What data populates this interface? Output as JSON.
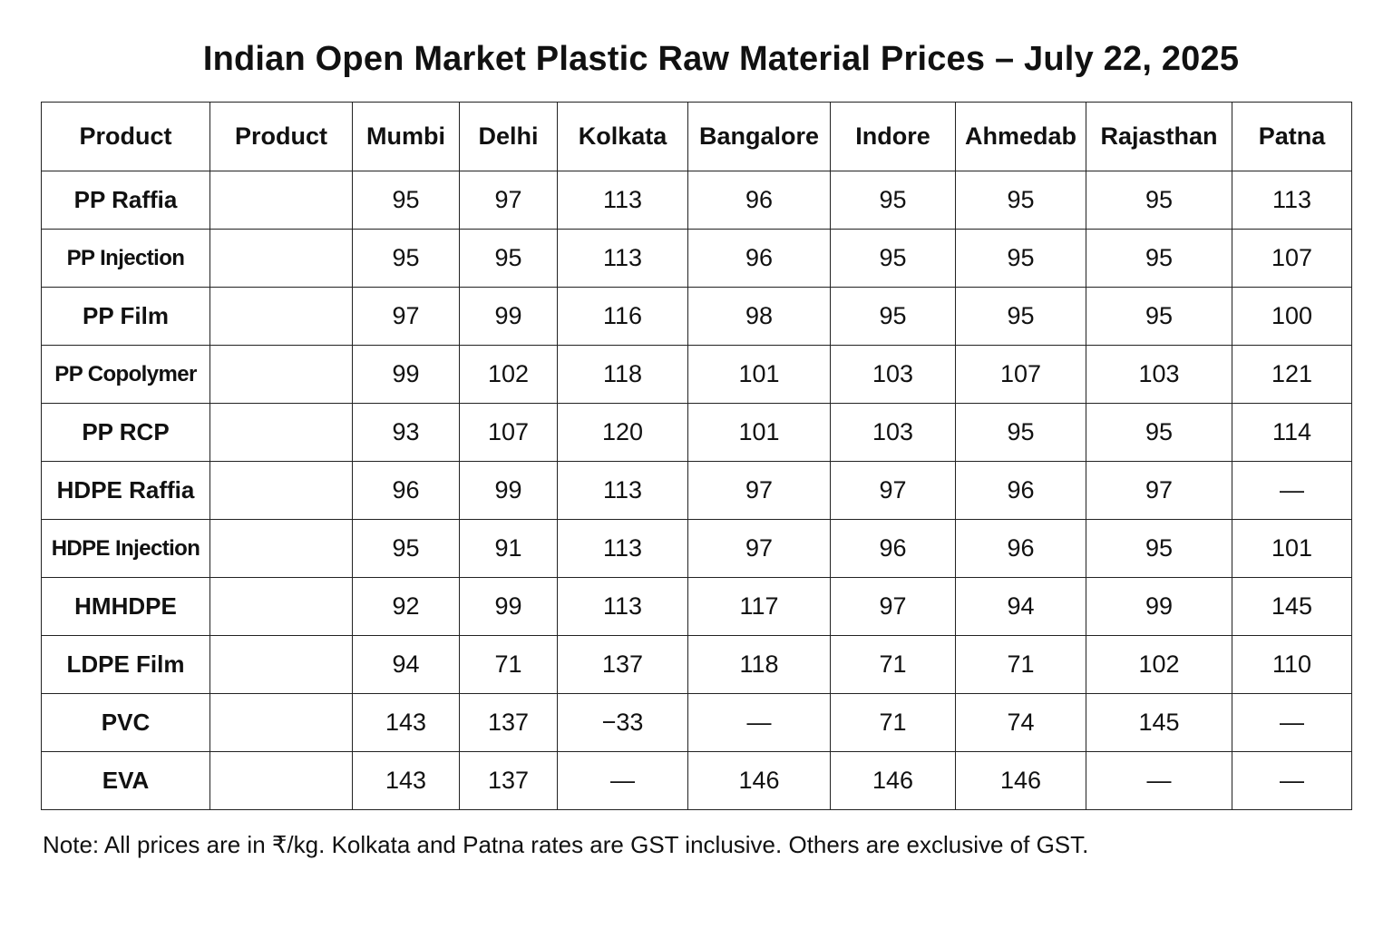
{
  "chart_data": {
    "type": "table",
    "title": "Indian Open Market Plastic Raw Material Prices – July 22, 2025",
    "columns": [
      "Product",
      "Product",
      "Mumbi",
      "Delhi",
      "Kolkata",
      "Bangalore",
      "Indore",
      "Ahmedab",
      "Rajasthan",
      "Patna"
    ],
    "rows": [
      {
        "product": "PP Raffia",
        "grade": "",
        "values": [
          "95",
          "97",
          "113",
          "96",
          "95",
          "95",
          "95",
          "113"
        ]
      },
      {
        "product": "PP Injection",
        "grade": "",
        "values": [
          "95",
          "95",
          "113",
          "96",
          "95",
          "95",
          "95",
          "107"
        ]
      },
      {
        "product": "PP Film",
        "grade": "",
        "values": [
          "97",
          "99",
          "116",
          "98",
          "95",
          "95",
          "95",
          "100"
        ]
      },
      {
        "product": "PP Copolymer",
        "grade": "",
        "values": [
          "99",
          "102",
          "118",
          "101",
          "103",
          "107",
          "103",
          "121"
        ]
      },
      {
        "product": "PP RCP",
        "grade": "",
        "values": [
          "93",
          "107",
          "120",
          "101",
          "103",
          "95",
          "95",
          "114"
        ]
      },
      {
        "product": "HDPE Raffia",
        "grade": "",
        "values": [
          "96",
          "99",
          "113",
          "97",
          "97",
          "96",
          "97",
          "—"
        ]
      },
      {
        "product": "HDPE Injection",
        "grade": "",
        "values": [
          "95",
          "91",
          "113",
          "97",
          "96",
          "96",
          "95",
          "101"
        ]
      },
      {
        "product": "HMHDPE",
        "grade": "",
        "values": [
          "92",
          "99",
          "113",
          "117",
          "97",
          "94",
          "99",
          "145"
        ]
      },
      {
        "product": "LDPE Film",
        "grade": "",
        "values": [
          "94",
          "71",
          "137",
          "118",
          "71",
          "71",
          "102",
          "110"
        ]
      },
      {
        "product": "PVC",
        "grade": "",
        "values": [
          "143",
          "137",
          "−33",
          "—",
          "71",
          "74",
          "145",
          "—"
        ]
      },
      {
        "product": "EVA",
        "grade": "",
        "values": [
          "143",
          "137",
          "—",
          "146",
          "146",
          "146",
          "—",
          "—"
        ]
      }
    ],
    "note": "Note: All prices are in ₹/kg. Kolkata and Patna rates are GST inclusive. Others are exclusive of GST."
  }
}
